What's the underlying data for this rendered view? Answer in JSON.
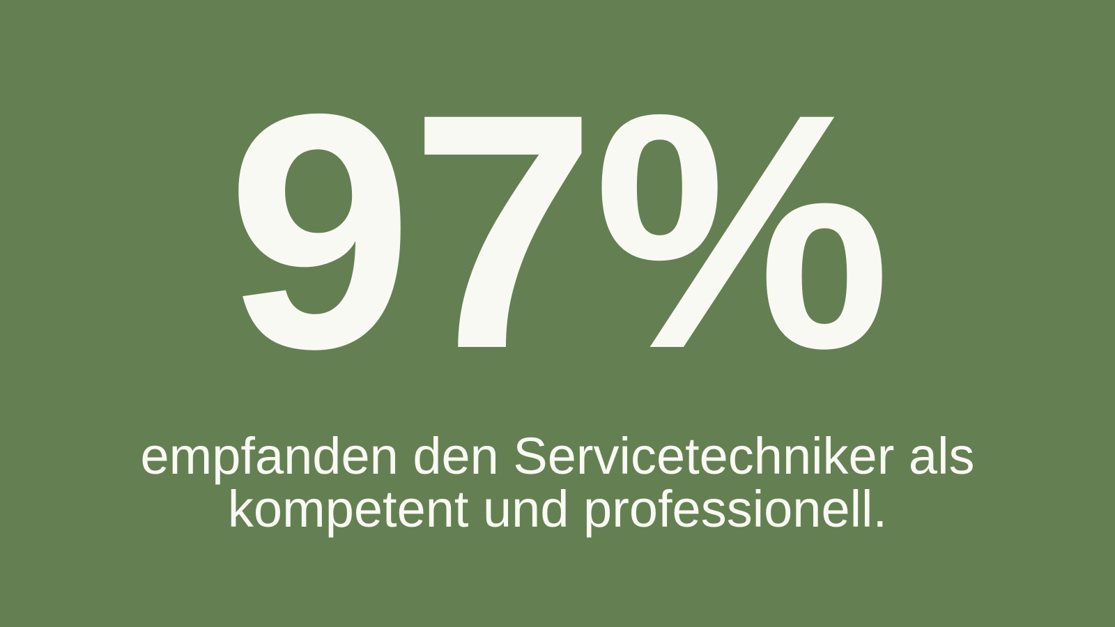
{
  "background_color": "#648052",
  "text_color": "#F9F9F3",
  "stat": {
    "value": "97%",
    "description_lines": [
      "empfanden den Servicetechniker als",
      "kompetent und professionell."
    ]
  }
}
